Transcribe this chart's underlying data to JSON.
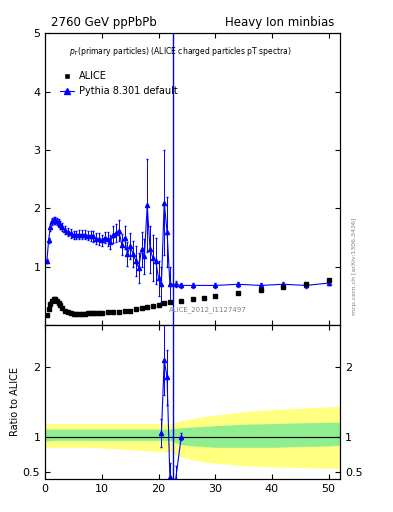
{
  "title_left": "2760 GeV ppPbPb",
  "title_right": "Heavy Ion minbias",
  "annotation": "p_{T}(primary particles) (ALICE charged particles pT spectra)",
  "ylabel_ratio": "Ratio to ALICE",
  "vertical_line_x": 22.5,
  "ylim_main": [
    0,
    5
  ],
  "ylim_ratio": [
    0.4,
    2.6
  ],
  "xlim": [
    0,
    52
  ],
  "watermark": "mcp.cern.ch [arXiv:1306.3436]",
  "ref_text": "ALICE_2012_I1127497",
  "alice_x": [
    0.3,
    0.6,
    0.9,
    1.2,
    1.5,
    1.8,
    2.1,
    2.4,
    2.7,
    3.0,
    3.5,
    4.0,
    4.5,
    5.0,
    5.5,
    6.0,
    6.5,
    7.0,
    7.5,
    8.0,
    8.5,
    9.0,
    9.5,
    10.0,
    11.0,
    12.0,
    13.0,
    14.0,
    15.0,
    16.0,
    17.0,
    18.0,
    19.0,
    20.0,
    21.0,
    22.0,
    24.0,
    26.0,
    28.0,
    30.0,
    34.0,
    38.0,
    42.0,
    46.0,
    50.0
  ],
  "alice_y": [
    0.18,
    0.28,
    0.36,
    0.42,
    0.44,
    0.44,
    0.42,
    0.38,
    0.34,
    0.3,
    0.25,
    0.22,
    0.2,
    0.19,
    0.19,
    0.19,
    0.19,
    0.19,
    0.2,
    0.2,
    0.2,
    0.2,
    0.21,
    0.21,
    0.22,
    0.22,
    0.23,
    0.24,
    0.25,
    0.27,
    0.29,
    0.31,
    0.33,
    0.35,
    0.38,
    0.4,
    0.42,
    0.44,
    0.47,
    0.5,
    0.55,
    0.6,
    0.65,
    0.7,
    0.78
  ],
  "pythia_x": [
    0.3,
    0.6,
    0.9,
    1.2,
    1.5,
    1.8,
    2.1,
    2.4,
    2.7,
    3.0,
    3.5,
    4.0,
    4.5,
    5.0,
    5.5,
    6.0,
    6.5,
    7.0,
    7.5,
    8.0,
    8.5,
    9.0,
    9.5,
    10.0,
    10.5,
    11.0,
    11.5,
    12.0,
    12.5,
    13.0,
    13.5,
    14.0,
    14.5,
    15.0,
    15.5,
    16.0,
    16.5,
    17.0,
    17.5,
    18.0,
    18.5,
    19.0,
    19.5,
    20.0,
    20.5,
    21.0,
    21.5,
    22.0,
    23.0,
    24.0,
    26.0,
    30.0,
    34.0,
    38.0,
    42.0,
    46.0,
    50.0
  ],
  "pythia_y": [
    1.1,
    1.45,
    1.68,
    1.78,
    1.8,
    1.8,
    1.78,
    1.75,
    1.72,
    1.68,
    1.63,
    1.6,
    1.57,
    1.55,
    1.55,
    1.55,
    1.55,
    1.55,
    1.53,
    1.53,
    1.52,
    1.48,
    1.47,
    1.45,
    1.5,
    1.48,
    1.42,
    1.55,
    1.58,
    1.62,
    1.38,
    1.5,
    1.22,
    1.35,
    1.22,
    1.1,
    0.98,
    1.3,
    1.18,
    2.05,
    1.3,
    1.15,
    1.1,
    0.8,
    0.7,
    2.1,
    1.6,
    0.7,
    0.7,
    0.68,
    0.68,
    0.68,
    0.7,
    0.68,
    0.7,
    0.68,
    0.72
  ],
  "pythia_yerr": [
    0.04,
    0.05,
    0.06,
    0.06,
    0.06,
    0.06,
    0.06,
    0.06,
    0.07,
    0.07,
    0.07,
    0.07,
    0.07,
    0.07,
    0.07,
    0.08,
    0.08,
    0.08,
    0.08,
    0.09,
    0.09,
    0.09,
    0.1,
    0.1,
    0.1,
    0.12,
    0.12,
    0.15,
    0.15,
    0.18,
    0.18,
    0.2,
    0.2,
    0.22,
    0.22,
    0.25,
    0.25,
    0.3,
    0.3,
    0.8,
    0.4,
    0.4,
    0.4,
    0.3,
    0.3,
    0.9,
    0.6,
    0.3,
    0.05,
    0.05,
    0.04,
    0.04,
    0.04,
    0.04,
    0.04,
    0.04,
    0.04
  ],
  "ratio_show_x": [
    20.5,
    21.0,
    21.5,
    22.0,
    23.0,
    24.0
  ],
  "ratio_show_y": [
    1.05,
    2.1,
    1.85,
    0.42,
    0.38,
    1.0
  ],
  "ratio_show_err": [
    0.2,
    0.5,
    0.4,
    0.2,
    0.2,
    0.05
  ],
  "green_band_x": [
    0,
    2,
    4,
    6,
    8,
    10,
    12,
    14,
    16,
    18,
    20,
    22,
    24,
    26,
    28,
    30,
    35,
    40,
    45,
    50,
    52
  ],
  "green_band_low": [
    0.95,
    0.96,
    0.96,
    0.96,
    0.96,
    0.96,
    0.96,
    0.96,
    0.96,
    0.96,
    0.96,
    0.96,
    0.9,
    0.88,
    0.87,
    0.86,
    0.86,
    0.86,
    0.87,
    0.88,
    0.89
  ],
  "green_band_high": [
    1.1,
    1.1,
    1.1,
    1.1,
    1.1,
    1.1,
    1.1,
    1.1,
    1.1,
    1.1,
    1.1,
    1.1,
    1.12,
    1.13,
    1.14,
    1.15,
    1.17,
    1.18,
    1.19,
    1.2,
    1.2
  ],
  "yellow_band_x": [
    0,
    2,
    4,
    6,
    8,
    10,
    12,
    14,
    16,
    18,
    20,
    22,
    24,
    26,
    28,
    30,
    35,
    40,
    45,
    50,
    52
  ],
  "yellow_band_low": [
    0.85,
    0.86,
    0.86,
    0.86,
    0.86,
    0.85,
    0.84,
    0.83,
    0.82,
    0.81,
    0.8,
    0.79,
    0.72,
    0.68,
    0.65,
    0.63,
    0.6,
    0.58,
    0.57,
    0.56,
    0.55
  ],
  "yellow_band_high": [
    1.18,
    1.18,
    1.18,
    1.18,
    1.18,
    1.18,
    1.18,
    1.18,
    1.18,
    1.18,
    1.18,
    1.18,
    1.22,
    1.25,
    1.28,
    1.3,
    1.35,
    1.38,
    1.4,
    1.42,
    1.43
  ],
  "alice_color": "#000000",
  "pythia_color": "#0000ff",
  "green_color": "#90ee90",
  "yellow_color": "#ffff80",
  "bg_color": "#ffffff"
}
